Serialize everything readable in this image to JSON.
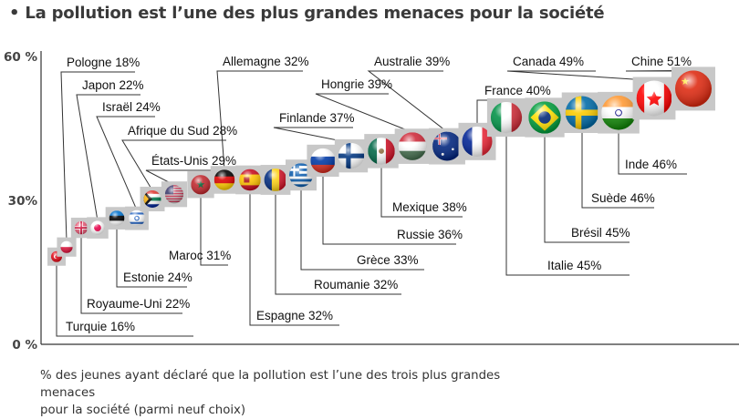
{
  "title": "La pollution est l’une des plus grandes menaces pour la société",
  "caption_line1": "% des jeunes ayant déclaré que la pollution est l’une des trois plus grandes menaces",
  "caption_line2": "pour la société (parmi neuf choix)",
  "chart_data": {
    "type": "scatter",
    "title": "La pollution est l’une des plus grandes menaces pour la société",
    "xlabel": "",
    "ylabel": "% des jeunes ayant déclaré que la pollution est l’une des trois plus grandes menaces pour la société (parmi neuf choix)",
    "ylim": [
      0,
      60
    ],
    "yticks": [
      {
        "value": 0,
        "label": "0 %"
      },
      {
        "value": 30,
        "label": "30%"
      },
      {
        "value": 60,
        "label": "60 %"
      }
    ],
    "grid": false,
    "marker": "country flag",
    "points": [
      {
        "country": "Turquie",
        "label": "Turquie 16%",
        "value": 16,
        "flag": "turkey",
        "side": "below",
        "row": 0
      },
      {
        "country": "Pologne",
        "label": "Pologne 18%",
        "value": 18,
        "flag": "poland",
        "side": "above",
        "row": 0
      },
      {
        "country": "Royaume-Uni",
        "label": "Royaume-Uni 22%",
        "value": 22,
        "flag": "uk",
        "side": "below",
        "row": 1
      },
      {
        "country": "Japon",
        "label": "Japon 22%",
        "value": 22,
        "flag": "japan",
        "side": "above",
        "row": 1
      },
      {
        "country": "Estonie",
        "label": "Estonie 24%",
        "value": 24,
        "flag": "estonia",
        "side": "below",
        "row": 2
      },
      {
        "country": "Israël",
        "label": "Israël 24%",
        "value": 24,
        "flag": "israel",
        "side": "above",
        "row": 2
      },
      {
        "country": "Afrique du Sud",
        "label": "Afrique du Sud 28%",
        "value": 28,
        "flag": "south-africa",
        "side": "above",
        "row": 3
      },
      {
        "country": "États-Unis",
        "label": "États-Unis 29%",
        "value": 29,
        "flag": "usa",
        "side": "above",
        "row": 4
      },
      {
        "country": "Maroc",
        "label": "Maroc 31%",
        "value": 31,
        "flag": "morocco",
        "side": "below",
        "row": 3
      },
      {
        "country": "Allemagne",
        "label": "Allemagne 32%",
        "value": 32,
        "flag": "germany",
        "side": "above",
        "row": 0
      },
      {
        "country": "Espagne",
        "label": "Espagne 32%",
        "value": 32,
        "flag": "spain",
        "side": "below",
        "row": 0
      },
      {
        "country": "Roumanie",
        "label": "Roumanie 32%",
        "value": 32,
        "flag": "romania",
        "side": "below",
        "row": 1
      },
      {
        "country": "Grèce",
        "label": "Grèce 33%",
        "value": 33,
        "flag": "greece",
        "side": "below",
        "row": 2
      },
      {
        "country": "Russie",
        "label": "Russie 36%",
        "value": 36,
        "flag": "russia",
        "side": "below",
        "row": 3
      },
      {
        "country": "Finlande",
        "label": "Finlande 37%",
        "value": 37,
        "flag": "finland",
        "side": "above",
        "row": 3
      },
      {
        "country": "Mexique",
        "label": "Mexique 38%",
        "value": 38,
        "flag": "mexico",
        "side": "below",
        "row": 4
      },
      {
        "country": "Hongrie",
        "label": "Hongrie 39%",
        "value": 39,
        "flag": "hungary",
        "side": "above",
        "row": 2
      },
      {
        "country": "Australie",
        "label": "Australie 39%",
        "value": 39,
        "flag": "australia",
        "side": "above",
        "row": 1
      },
      {
        "country": "France",
        "label": "France 40%",
        "value": 40,
        "flag": "france",
        "side": "above",
        "row": 3
      },
      {
        "country": "Italie",
        "label": "Italie 45%",
        "value": 45,
        "flag": "italy",
        "side": "below",
        "row": 0
      },
      {
        "country": "Brésil",
        "label": "Brésil 45%",
        "value": 45,
        "flag": "brazil",
        "side": "below",
        "row": 1
      },
      {
        "country": "Suède",
        "label": "Suède 46%",
        "value": 46,
        "flag": "sweden",
        "side": "below",
        "row": 2
      },
      {
        "country": "Inde",
        "label": "Inde 46%",
        "value": 46,
        "flag": "india",
        "side": "below",
        "row": 3
      },
      {
        "country": "Canada",
        "label": "Canada 49%",
        "value": 49,
        "flag": "canada",
        "side": "above",
        "row": 0
      },
      {
        "country": "Chine",
        "label": "Chine 51%",
        "value": 51,
        "flag": "china",
        "side": "above",
        "row": 0
      }
    ]
  }
}
